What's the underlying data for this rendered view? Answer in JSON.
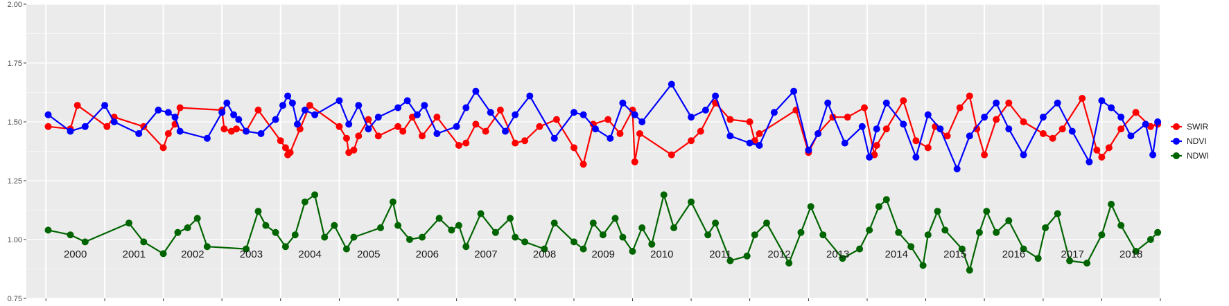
{
  "chart_data": {
    "type": "line",
    "title": "",
    "xlabel": "",
    "ylabel": "",
    "ylim": [
      0.75,
      2.0
    ],
    "xlim": [
      "1999-09-01",
      "2019-01-01"
    ],
    "y_ticks": [
      "0.75",
      "1.00",
      "1.25",
      "1.50",
      "1.75",
      "2.00"
    ],
    "y_tick_values": [
      0.75,
      1.0,
      1.25,
      1.5,
      1.75,
      2.0
    ],
    "years": [
      "2000",
      "2001",
      "2002",
      "2003",
      "2004",
      "2005",
      "2006",
      "2007",
      "2008",
      "2009",
      "2010",
      "2011",
      "2012",
      "2013",
      "2014",
      "2015",
      "2016",
      "2017",
      "2018"
    ],
    "grid": true,
    "legend": "right",
    "series": [
      {
        "name": "SWIR",
        "color": "#ff0000",
        "points": [
          [
            "2000-01-15",
            1.48
          ],
          [
            "2000-06-01",
            1.47
          ],
          [
            "2000-07-15",
            1.57
          ],
          [
            "2001-01-15",
            1.48
          ],
          [
            "2001-03-01",
            1.52
          ],
          [
            "2001-09-01",
            1.48
          ],
          [
            "2002-01-01",
            1.39
          ],
          [
            "2002-02-01",
            1.45
          ],
          [
            "2002-03-15",
            1.49
          ],
          [
            "2002-04-15",
            1.56
          ],
          [
            "2003-01-01",
            1.55
          ],
          [
            "2003-01-15",
            1.47
          ],
          [
            "2003-03-01",
            1.46
          ],
          [
            "2003-04-01",
            1.47
          ],
          [
            "2003-06-01",
            1.46
          ],
          [
            "2003-08-15",
            1.55
          ],
          [
            "2004-01-01",
            1.42
          ],
          [
            "2004-02-01",
            1.39
          ],
          [
            "2004-02-15",
            1.36
          ],
          [
            "2004-03-01",
            1.37
          ],
          [
            "2004-05-01",
            1.47
          ],
          [
            "2004-07-01",
            1.57
          ],
          [
            "2005-01-01",
            1.48
          ],
          [
            "2005-02-15",
            1.43
          ],
          [
            "2005-03-01",
            1.37
          ],
          [
            "2005-04-01",
            1.38
          ],
          [
            "2005-05-01",
            1.44
          ],
          [
            "2005-07-01",
            1.51
          ],
          [
            "2005-09-01",
            1.44
          ],
          [
            "2006-01-01",
            1.48
          ],
          [
            "2006-02-01",
            1.46
          ],
          [
            "2006-04-01",
            1.52
          ],
          [
            "2006-06-01",
            1.44
          ],
          [
            "2006-09-01",
            1.52
          ],
          [
            "2007-01-15",
            1.4
          ],
          [
            "2007-03-01",
            1.41
          ],
          [
            "2007-05-01",
            1.49
          ],
          [
            "2007-07-01",
            1.46
          ],
          [
            "2007-10-01",
            1.55
          ],
          [
            "2008-01-01",
            1.41
          ],
          [
            "2008-03-01",
            1.42
          ],
          [
            "2008-06-01",
            1.48
          ],
          [
            "2008-09-15",
            1.51
          ],
          [
            "2009-01-01",
            1.39
          ],
          [
            "2009-03-01",
            1.32
          ],
          [
            "2009-05-01",
            1.49
          ],
          [
            "2009-08-01",
            1.51
          ],
          [
            "2009-10-15",
            1.45
          ],
          [
            "2010-01-01",
            1.55
          ],
          [
            "2010-01-15",
            1.33
          ],
          [
            "2010-02-15",
            1.45
          ],
          [
            "2010-09-01",
            1.36
          ],
          [
            "2011-01-01",
            1.42
          ],
          [
            "2011-03-01",
            1.46
          ],
          [
            "2011-06-01",
            1.58
          ],
          [
            "2011-09-01",
            1.51
          ],
          [
            "2012-01-01",
            1.5
          ],
          [
            "2012-02-01",
            1.42
          ],
          [
            "2012-03-01",
            1.45
          ],
          [
            "2012-10-15",
            1.55
          ],
          [
            "2013-01-01",
            1.37
          ],
          [
            "2013-03-01",
            1.45
          ],
          [
            "2013-06-01",
            1.52
          ],
          [
            "2013-09-01",
            1.52
          ],
          [
            "2013-12-15",
            1.56
          ],
          [
            "2014-02-15",
            1.36
          ],
          [
            "2014-03-01",
            1.4
          ],
          [
            "2014-05-01",
            1.47
          ],
          [
            "2014-08-15",
            1.59
          ],
          [
            "2014-11-01",
            1.42
          ],
          [
            "2015-01-15",
            1.39
          ],
          [
            "2015-03-01",
            1.48
          ],
          [
            "2015-05-15",
            1.44
          ],
          [
            "2015-08-01",
            1.56
          ],
          [
            "2015-10-01",
            1.61
          ],
          [
            "2015-11-15",
            1.47
          ],
          [
            "2016-01-01",
            1.36
          ],
          [
            "2016-03-15",
            1.51
          ],
          [
            "2016-06-01",
            1.58
          ],
          [
            "2016-09-01",
            1.5
          ],
          [
            "2017-01-01",
            1.45
          ],
          [
            "2017-03-01",
            1.43
          ],
          [
            "2017-05-01",
            1.47
          ],
          [
            "2017-09-01",
            1.6
          ],
          [
            "2017-12-01",
            1.38
          ],
          [
            "2018-01-01",
            1.35
          ],
          [
            "2018-02-15",
            1.39
          ],
          [
            "2018-05-01",
            1.47
          ],
          [
            "2018-08-01",
            1.54
          ],
          [
            "2018-11-01",
            1.48
          ],
          [
            "2018-12-15",
            1.49
          ]
        ]
      },
      {
        "name": "NDVI",
        "color": "#0000ff",
        "points": [
          [
            "2000-01-15",
            1.53
          ],
          [
            "2000-06-01",
            1.46
          ],
          [
            "2000-09-01",
            1.48
          ],
          [
            "2001-01-01",
            1.57
          ],
          [
            "2001-03-01",
            1.5
          ],
          [
            "2001-08-01",
            1.45
          ],
          [
            "2001-12-01",
            1.55
          ],
          [
            "2002-02-01",
            1.54
          ],
          [
            "2002-03-15",
            1.52
          ],
          [
            "2002-04-15",
            1.46
          ],
          [
            "2002-10-01",
            1.43
          ],
          [
            "2003-01-01",
            1.54
          ],
          [
            "2003-02-01",
            1.58
          ],
          [
            "2003-03-15",
            1.53
          ],
          [
            "2003-04-15",
            1.51
          ],
          [
            "2003-06-01",
            1.46
          ],
          [
            "2003-09-01",
            1.45
          ],
          [
            "2003-12-01",
            1.51
          ],
          [
            "2004-01-15",
            1.57
          ],
          [
            "2004-02-15",
            1.61
          ],
          [
            "2004-03-15",
            1.58
          ],
          [
            "2004-04-15",
            1.49
          ],
          [
            "2004-06-01",
            1.55
          ],
          [
            "2004-08-01",
            1.53
          ],
          [
            "2005-01-01",
            1.59
          ],
          [
            "2005-03-01",
            1.49
          ],
          [
            "2005-05-01",
            1.57
          ],
          [
            "2005-07-01",
            1.47
          ],
          [
            "2005-09-01",
            1.52
          ],
          [
            "2006-01-01",
            1.56
          ],
          [
            "2006-03-01",
            1.59
          ],
          [
            "2006-05-01",
            1.53
          ],
          [
            "2006-06-15",
            1.57
          ],
          [
            "2006-09-01",
            1.45
          ],
          [
            "2007-01-01",
            1.48
          ],
          [
            "2007-03-01",
            1.56
          ],
          [
            "2007-05-01",
            1.63
          ],
          [
            "2007-08-01",
            1.54
          ],
          [
            "2007-11-01",
            1.46
          ],
          [
            "2008-01-01",
            1.53
          ],
          [
            "2008-04-01",
            1.61
          ],
          [
            "2008-09-01",
            1.43
          ],
          [
            "2009-01-01",
            1.54
          ],
          [
            "2009-03-01",
            1.53
          ],
          [
            "2009-05-15",
            1.47
          ],
          [
            "2009-08-15",
            1.43
          ],
          [
            "2009-11-01",
            1.58
          ],
          [
            "2010-01-15",
            1.53
          ],
          [
            "2010-03-01",
            1.5
          ],
          [
            "2010-09-01",
            1.66
          ],
          [
            "2011-01-01",
            1.52
          ],
          [
            "2011-04-01",
            1.55
          ],
          [
            "2011-06-01",
            1.61
          ],
          [
            "2011-09-01",
            1.44
          ],
          [
            "2012-01-01",
            1.41
          ],
          [
            "2012-03-01",
            1.4
          ],
          [
            "2012-06-01",
            1.54
          ],
          [
            "2012-10-01",
            1.63
          ],
          [
            "2013-01-01",
            1.38
          ],
          [
            "2013-03-01",
            1.45
          ],
          [
            "2013-05-01",
            1.58
          ],
          [
            "2013-08-15",
            1.41
          ],
          [
            "2013-12-01",
            1.48
          ],
          [
            "2014-01-15",
            1.35
          ],
          [
            "2014-03-01",
            1.47
          ],
          [
            "2014-05-01",
            1.58
          ],
          [
            "2014-08-15",
            1.49
          ],
          [
            "2014-11-01",
            1.35
          ],
          [
            "2015-01-15",
            1.53
          ],
          [
            "2015-04-01",
            1.47
          ],
          [
            "2015-07-15",
            1.3
          ],
          [
            "2015-10-01",
            1.44
          ],
          [
            "2016-01-01",
            1.52
          ],
          [
            "2016-03-15",
            1.58
          ],
          [
            "2016-06-01",
            1.47
          ],
          [
            "2016-09-01",
            1.36
          ],
          [
            "2017-01-01",
            1.52
          ],
          [
            "2017-04-01",
            1.58
          ],
          [
            "2017-07-01",
            1.46
          ],
          [
            "2017-10-15",
            1.33
          ],
          [
            "2018-01-01",
            1.59
          ],
          [
            "2018-03-01",
            1.56
          ],
          [
            "2018-05-01",
            1.52
          ],
          [
            "2018-07-01",
            1.44
          ],
          [
            "2018-10-01",
            1.49
          ],
          [
            "2018-11-15",
            1.36
          ],
          [
            "2018-12-15",
            1.5
          ]
        ]
      },
      {
        "name": "NDWI",
        "color": "#006400",
        "points": [
          [
            "2000-01-15",
            1.04
          ],
          [
            "2000-06-01",
            1.02
          ],
          [
            "2000-09-01",
            0.99
          ],
          [
            "2001-06-01",
            1.07
          ],
          [
            "2001-09-01",
            0.99
          ],
          [
            "2002-01-01",
            0.94
          ],
          [
            "2002-04-01",
            1.03
          ],
          [
            "2002-06-01",
            1.05
          ],
          [
            "2002-08-01",
            1.09
          ],
          [
            "2002-10-01",
            0.97
          ],
          [
            "2003-06-01",
            0.96
          ],
          [
            "2003-08-15",
            1.12
          ],
          [
            "2003-10-01",
            1.06
          ],
          [
            "2003-12-01",
            1.03
          ],
          [
            "2004-02-01",
            0.97
          ],
          [
            "2004-04-01",
            1.02
          ],
          [
            "2004-06-01",
            1.16
          ],
          [
            "2004-08-01",
            1.19
          ],
          [
            "2004-10-01",
            1.01
          ],
          [
            "2004-12-01",
            1.06
          ],
          [
            "2005-02-15",
            0.96
          ],
          [
            "2005-04-01",
            1.01
          ],
          [
            "2005-09-15",
            1.05
          ],
          [
            "2005-12-01",
            1.16
          ],
          [
            "2006-01-01",
            1.06
          ],
          [
            "2006-03-15",
            1.0
          ],
          [
            "2006-06-01",
            1.01
          ],
          [
            "2006-09-15",
            1.09
          ],
          [
            "2006-12-01",
            1.04
          ],
          [
            "2007-01-15",
            1.06
          ],
          [
            "2007-03-01",
            0.97
          ],
          [
            "2007-06-01",
            1.11
          ],
          [
            "2007-09-01",
            1.03
          ],
          [
            "2007-12-01",
            1.09
          ],
          [
            "2008-01-01",
            1.01
          ],
          [
            "2008-03-01",
            0.99
          ],
          [
            "2008-07-01",
            0.96
          ],
          [
            "2008-09-01",
            1.07
          ],
          [
            "2009-01-01",
            0.99
          ],
          [
            "2009-03-01",
            0.96
          ],
          [
            "2009-05-01",
            1.07
          ],
          [
            "2009-07-01",
            1.02
          ],
          [
            "2009-09-15",
            1.09
          ],
          [
            "2009-11-01",
            1.01
          ],
          [
            "2010-01-01",
            0.95
          ],
          [
            "2010-03-01",
            1.05
          ],
          [
            "2010-05-01",
            0.98
          ],
          [
            "2010-07-15",
            1.19
          ],
          [
            "2010-09-15",
            1.05
          ],
          [
            "2011-01-01",
            1.16
          ],
          [
            "2011-04-15",
            1.02
          ],
          [
            "2011-06-01",
            1.07
          ],
          [
            "2011-09-01",
            0.91
          ],
          [
            "2011-12-15",
            0.93
          ],
          [
            "2012-02-01",
            1.02
          ],
          [
            "2012-04-15",
            1.07
          ],
          [
            "2012-09-01",
            0.9
          ],
          [
            "2012-11-15",
            1.03
          ],
          [
            "2013-01-15",
            1.14
          ],
          [
            "2013-04-01",
            1.02
          ],
          [
            "2013-08-01",
            0.92
          ],
          [
            "2013-11-15",
            0.96
          ],
          [
            "2014-01-15",
            1.04
          ],
          [
            "2014-03-15",
            1.14
          ],
          [
            "2014-05-01",
            1.17
          ],
          [
            "2014-07-15",
            1.03
          ],
          [
            "2014-10-01",
            0.97
          ],
          [
            "2014-12-15",
            0.89
          ],
          [
            "2015-01-15",
            1.02
          ],
          [
            "2015-03-15",
            1.12
          ],
          [
            "2015-05-01",
            1.04
          ],
          [
            "2015-08-15",
            0.96
          ],
          [
            "2015-10-01",
            0.87
          ],
          [
            "2015-12-01",
            1.03
          ],
          [
            "2016-01-15",
            1.12
          ],
          [
            "2016-03-15",
            1.03
          ],
          [
            "2016-06-01",
            1.08
          ],
          [
            "2016-09-01",
            0.96
          ],
          [
            "2016-12-01",
            0.92
          ],
          [
            "2017-01-15",
            1.05
          ],
          [
            "2017-04-01",
            1.11
          ],
          [
            "2017-06-15",
            0.91
          ],
          [
            "2017-10-01",
            0.9
          ],
          [
            "2018-01-01",
            1.02
          ],
          [
            "2018-03-01",
            1.15
          ],
          [
            "2018-05-01",
            1.06
          ],
          [
            "2018-08-01",
            0.95
          ],
          [
            "2018-11-01",
            1.0
          ],
          [
            "2018-12-15",
            1.03
          ]
        ]
      }
    ]
  }
}
